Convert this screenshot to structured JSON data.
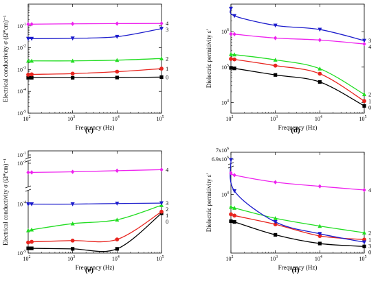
{
  "chart_data": [
    {
      "id": "c",
      "panel_label": "(c)",
      "type": "line",
      "xlabel": "Frequency (Hz)",
      "ylabel": "Electrical conductivity σ (Ω*cm)⁻¹",
      "xscale": "log",
      "yscale": "log",
      "xlim": [
        100,
        100000
      ],
      "ylim": [
        1e-05,
        1
      ],
      "x_ticks": [
        {
          "v": 100,
          "b": "10",
          "e": "2"
        },
        {
          "v": 1000,
          "b": "10",
          "e": "3"
        },
        {
          "v": 10000,
          "b": "10",
          "e": "4"
        },
        {
          "v": 100000,
          "b": "10",
          "e": "5"
        }
      ],
      "y_ticks": [
        {
          "v": 1e-05,
          "b": "10",
          "e": "-5"
        },
        {
          "v": 0.0001,
          "b": "10",
          "e": "-4"
        },
        {
          "v": 0.001,
          "b": "10",
          "e": "-3"
        },
        {
          "v": 0.01,
          "b": "10",
          "e": "-2"
        },
        {
          "v": 0.1,
          "b": "10",
          "e": "-1"
        }
      ],
      "series": [
        {
          "name": "0",
          "color": "#000000",
          "marker": "square",
          "x": [
            100,
            120,
            1000,
            10000,
            100000
          ],
          "y": [
            0.00042,
            0.00042,
            0.00042,
            0.00043,
            0.00045
          ]
        },
        {
          "name": "1",
          "color": "#e8251f",
          "marker": "circle",
          "x": [
            100,
            120,
            1000,
            10000,
            100000
          ],
          "y": [
            0.00058,
            0.0006,
            0.00065,
            0.0008,
            0.0011
          ]
        },
        {
          "name": "2",
          "color": "#22dd22",
          "marker": "triangle",
          "x": [
            100,
            120,
            1000,
            10000,
            100000
          ],
          "y": [
            0.0025,
            0.0025,
            0.0025,
            0.0027,
            0.0032
          ]
        },
        {
          "name": "3",
          "color": "#1c1ccc",
          "marker": "triangle-down",
          "x": [
            100,
            120,
            1000,
            10000,
            100000
          ],
          "y": [
            0.026,
            0.026,
            0.027,
            0.032,
            0.075
          ]
        },
        {
          "name": "4",
          "color": "#ee22ee",
          "marker": "diamond",
          "x": [
            100,
            120,
            1000,
            10000,
            100000
          ],
          "y": [
            0.12,
            0.12,
            0.125,
            0.128,
            0.13
          ]
        }
      ]
    },
    {
      "id": "d",
      "panel_label": "(d)",
      "type": "line",
      "xlabel": "Frequency (Hz)",
      "ylabel": "Dielectric permitivity ε'",
      "xscale": "log",
      "yscale": "log",
      "xlim": [
        100,
        100000
      ],
      "ylim": [
        5000,
        6000000
      ],
      "x_ticks": [
        {
          "v": 100,
          "b": "10",
          "e": "2"
        },
        {
          "v": 1000,
          "b": "10",
          "e": "3"
        },
        {
          "v": 10000,
          "b": "10",
          "e": "4"
        },
        {
          "v": 100000,
          "b": "10",
          "e": "5"
        }
      ],
      "y_ticks": [
        {
          "v": 10000,
          "b": "10",
          "e": "4"
        },
        {
          "v": 100000,
          "b": "10",
          "e": "5"
        },
        {
          "v": 1000000,
          "b": "10",
          "e": "6"
        }
      ],
      "series": [
        {
          "name": "0",
          "color": "#000000",
          "marker": "square",
          "x": [
            100,
            120,
            1000,
            10000,
            100000
          ],
          "y": [
            95000,
            92000,
            60000,
            38000,
            8000
          ]
        },
        {
          "name": "1",
          "color": "#e8251f",
          "marker": "circle",
          "x": [
            100,
            120,
            1000,
            10000,
            100000
          ],
          "y": [
            170000,
            165000,
            110000,
            65000,
            11000
          ]
        },
        {
          "name": "2",
          "color": "#22dd22",
          "marker": "triangle",
          "x": [
            100,
            120,
            1000,
            10000,
            100000
          ],
          "y": [
            230000,
            225000,
            160000,
            90000,
            17000
          ]
        },
        {
          "name": "3",
          "color": "#1c1ccc",
          "marker": "triangle-down",
          "x": [
            100,
            120,
            1000,
            10000,
            100000
          ],
          "y": [
            4500000,
            2800000,
            1500000,
            1150000,
            560000
          ]
        },
        {
          "name": "4",
          "color": "#ee22ee",
          "marker": "diamond",
          "x": [
            100,
            120,
            1000,
            10000,
            100000
          ],
          "y": [
            860000,
            850000,
            660000,
            580000,
            450000
          ]
        }
      ]
    },
    {
      "id": "e",
      "panel_label": "(e)",
      "type": "line",
      "xlabel": "Frequency (Hz)",
      "ylabel": "Electrical conductivity σ (Ω*cm)⁻¹",
      "xscale": "log",
      "xlim": [
        100,
        100000
      ],
      "y_axis_note": "broken log axis",
      "x_ticks": [
        {
          "v": 100,
          "b": "10",
          "e": "2"
        },
        {
          "v": 1000,
          "b": "10",
          "e": "3"
        },
        {
          "v": 10000,
          "b": "10",
          "e": "4"
        },
        {
          "v": 100000,
          "b": "10",
          "e": "5"
        }
      ],
      "y_ticks": [
        {
          "label": "10",
          "e": "-5"
        },
        {
          "label": "10",
          "e": "-4"
        },
        {
          "label": "10",
          "e": "-3"
        },
        {
          "label": "10",
          "e": "-1"
        }
      ],
      "series": [
        {
          "name": "0",
          "color": "#000000",
          "marker": "square",
          "x": [
            100,
            120,
            1000,
            10000,
            100000
          ],
          "y": [
            1.25e-05,
            1.25e-05,
            1.22e-05,
            1.22e-05,
            6.5e-05
          ]
        },
        {
          "name": "1",
          "color": "#e8251f",
          "marker": "circle",
          "x": [
            100,
            120,
            1000,
            10000,
            100000
          ],
          "y": [
            1.65e-05,
            1.7e-05,
            1.8e-05,
            1.9e-05,
            7e-05
          ]
        },
        {
          "name": "2",
          "color": "#22dd22",
          "marker": "triangle",
          "x": [
            100,
            120,
            1000,
            10000,
            100000
          ],
          "y": [
            2.9e-05,
            3e-05,
            4e-05,
            4.8e-05,
            9.5e-05
          ]
        },
        {
          "name": "3",
          "color": "#1c1ccc",
          "marker": "triangle-down",
          "x": [
            100,
            120,
            1000,
            10000,
            100000
          ],
          "y": [
            0.0001,
            0.0001,
            0.0001,
            0.000103,
            0.000105
          ]
        },
        {
          "name": "4",
          "color": "#ee22ee",
          "marker": "diamond",
          "x": [
            100,
            120,
            1000,
            10000,
            100000
          ],
          "y": [
            0.0006,
            0.0006,
            0.00062,
            0.00066,
            0.0007
          ]
        }
      ]
    },
    {
      "id": "f",
      "panel_label": "(f)",
      "type": "line",
      "xlabel": "Frequency (Hz)",
      "ylabel": "Dielectric permitivity ε'",
      "xscale": "log",
      "xlim": [
        100,
        100000
      ],
      "y_axis_note": "broken axis",
      "x_ticks": [
        {
          "v": 100,
          "b": "10",
          "e": "2"
        },
        {
          "v": 1000,
          "b": "10",
          "e": "3"
        },
        {
          "v": 10000,
          "b": "10",
          "e": "4"
        },
        {
          "v": 100000,
          "b": "10",
          "e": "5"
        }
      ],
      "y_ticks": [
        {
          "label": "10",
          "e": "4"
        },
        {
          "label": "6.9x10",
          "e": "6"
        },
        {
          "label": "7x10",
          "e": "6"
        }
      ],
      "series": [
        {
          "name": "0",
          "color": "#000000",
          "marker": "square",
          "x": [
            100,
            120,
            1000,
            10000,
            100000
          ],
          "y": [
            4800,
            4700,
            3300,
            2600,
            2400
          ]
        },
        {
          "name": "1",
          "color": "#e8251f",
          "marker": "circle",
          "x": [
            100,
            120,
            1000,
            10000,
            100000
          ],
          "y": [
            5800,
            5600,
            4400,
            3200,
            2900
          ]
        },
        {
          "name": "2",
          "color": "#22dd22",
          "marker": "triangle",
          "x": [
            100,
            120,
            1000,
            10000,
            100000
          ],
          "y": [
            7100,
            6900,
            5200,
            4200,
            3500
          ]
        },
        {
          "name": "3",
          "color": "#1c1ccc",
          "marker": "triangle-down",
          "x": [
            100,
            120,
            1000,
            10000,
            100000
          ],
          "y": [
            6950000,
            11000,
            4700,
            3400,
            2700
          ]
        },
        {
          "name": "4",
          "color": "#ee22ee",
          "marker": "diamond",
          "x": [
            100,
            120,
            1000,
            10000,
            100000
          ],
          "y": [
            18000,
            17000,
            14000,
            12500,
            11300
          ]
        }
      ]
    }
  ]
}
